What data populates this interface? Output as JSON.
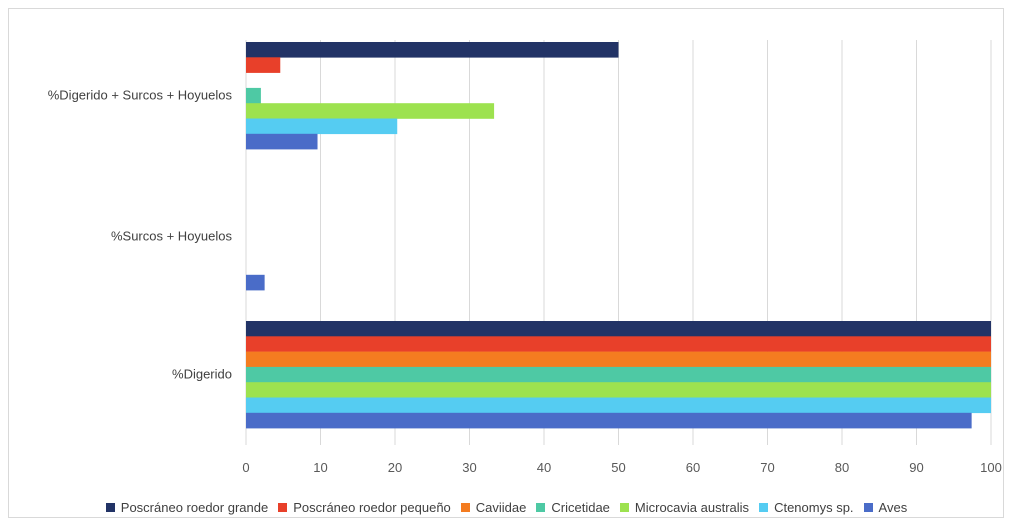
{
  "chart_data": {
    "type": "bar",
    "orientation": "horizontal",
    "categories": [
      "%Digerido + Surcos + Hoyuelos",
      "%Surcos + Hoyuelos",
      "%Digerido"
    ],
    "series": [
      {
        "name": "Poscráneo roedor grande",
        "color": "#223366",
        "values": [
          50,
          0,
          100
        ]
      },
      {
        "name": "Poscráneo roedor pequeño",
        "color": "#e8402a",
        "values": [
          4.6,
          0,
          100
        ]
      },
      {
        "name": "Caviidae",
        "color": "#f47c20",
        "values": [
          0,
          0,
          100
        ]
      },
      {
        "name": "Cricetidae",
        "color": "#4ec9a4",
        "values": [
          2,
          0,
          100
        ]
      },
      {
        "name": "Microcavia australis",
        "color": "#9de24f",
        "values": [
          33.3,
          0,
          100
        ]
      },
      {
        "name": "Ctenomys sp.",
        "color": "#55ccf2",
        "values": [
          20.3,
          0,
          100
        ]
      },
      {
        "name": "Aves",
        "color": "#4a6cc8",
        "values": [
          9.6,
          2.5,
          97.4
        ]
      }
    ],
    "x_ticks": [
      "0",
      "10",
      "20",
      "30",
      "40",
      "50",
      "60",
      "70",
      "80",
      "90",
      "100"
    ],
    "xlim": [
      0,
      100
    ],
    "grid": true,
    "legend_position": "bottom"
  }
}
